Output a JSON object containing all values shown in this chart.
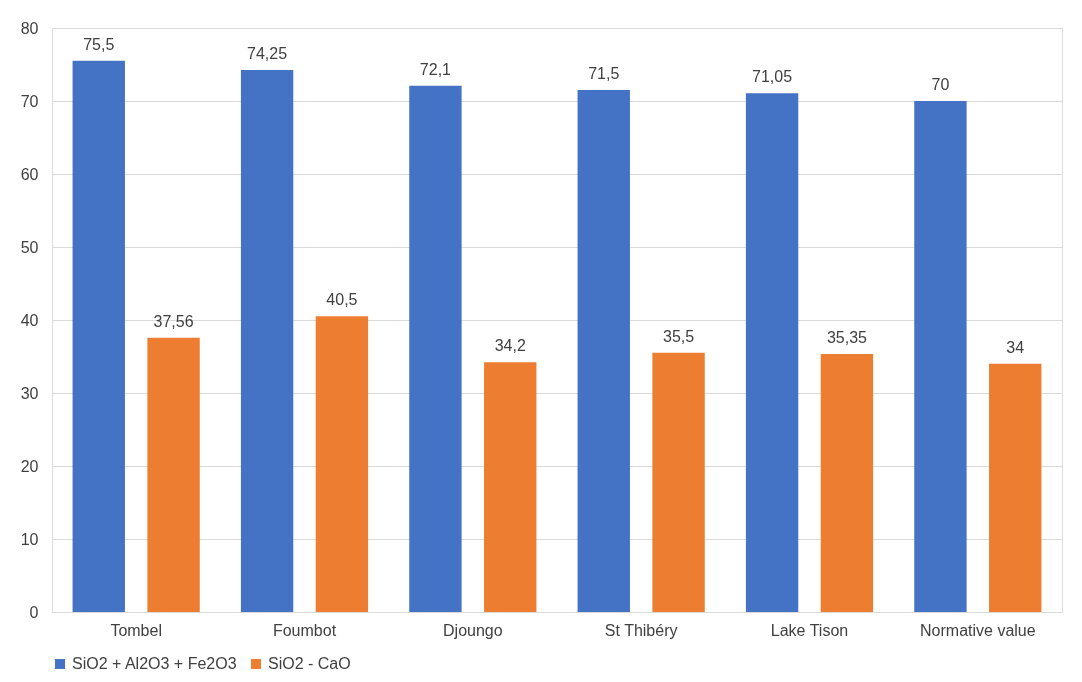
{
  "chart_data": {
    "type": "bar",
    "categories": [
      "Tombel",
      "Foumbot",
      "Djoungo",
      "St Thibéry",
      "Lake Tison",
      "Normative value"
    ],
    "series": [
      {
        "name": "SiO2 + Al2O3 + Fe2O3",
        "color": "#4472c4",
        "values": [
          75.5,
          74.25,
          72.1,
          71.5,
          71.05,
          70
        ],
        "value_labels": [
          "75,5",
          "74,25",
          "72,1",
          "71,5",
          "71,05",
          "70"
        ]
      },
      {
        "name": "SiO2 - CaO",
        "color": "#ed7d31",
        "values": [
          37.56,
          40.5,
          34.2,
          35.5,
          35.35,
          34
        ],
        "value_labels": [
          "37,56",
          "40,5",
          "34,2",
          "35,5",
          "35,35",
          "34"
        ]
      }
    ],
    "ylim": [
      0,
      80
    ],
    "yticks": [
      0,
      10,
      20,
      30,
      40,
      50,
      60,
      70,
      80
    ],
    "grid": "y",
    "legend": "bottom"
  }
}
